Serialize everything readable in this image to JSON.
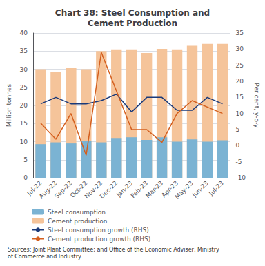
{
  "chart_data": {
    "type": "bar",
    "title": "Chart 38: Steel Consumption and\nCement Production",
    "source": "Sources: Joint Plant Committee; and Office of the Economic Adviser, Ministry\nof Commerce and Industry.",
    "categories": [
      "Jul-22",
      "Aug-22",
      "Sep-22",
      "Oct-22",
      "Nov-22",
      "Dec-22",
      "Jan-23",
      "Feb-23",
      "Mar-23",
      "Apr-23",
      "May-23",
      "Jun-23",
      "Jul-23"
    ],
    "series": [
      {
        "name": "Steel consumption",
        "type": "bar",
        "color": "#7bb3d3",
        "values": [
          9.3,
          9.8,
          9.5,
          10.2,
          9.8,
          11.0,
          11.2,
          10.5,
          11.2,
          10.0,
          10.6,
          10.0,
          10.4
        ]
      },
      {
        "name": "Cement production",
        "type": "bar",
        "color": "#f5c49a",
        "values": [
          30.0,
          29.3,
          30.5,
          30.0,
          35.0,
          35.5,
          35.5,
          34.5,
          35.6,
          35.5,
          36.5,
          37.0,
          37.0
        ]
      },
      {
        "name": "Steel consumption growth (RHS)",
        "type": "line",
        "axis": "y2",
        "color": "#1a3a7a",
        "values": [
          13,
          15,
          13,
          13,
          14,
          16,
          10.5,
          15,
          15,
          11,
          11,
          15,
          13
        ]
      },
      {
        "name": "Cement production growth (RHS)",
        "type": "line",
        "axis": "y2",
        "color": "#d45f1e",
        "values": [
          7,
          2,
          10,
          -3,
          29,
          17,
          5,
          5,
          1,
          10,
          14,
          12,
          10
        ]
      }
    ],
    "ylabel": "Million tonnes",
    "y2label": "Per cent, y-o-y",
    "ylim": [
      0,
      40
    ],
    "yticks": [
      0,
      5,
      10,
      15,
      20,
      25,
      30,
      35,
      40
    ],
    "y2lim": [
      -10,
      35
    ],
    "y2ticks": [
      -10,
      -5,
      0,
      5,
      10,
      15,
      20,
      25,
      30,
      35
    ],
    "grid": true,
    "legend": "bottom"
  }
}
